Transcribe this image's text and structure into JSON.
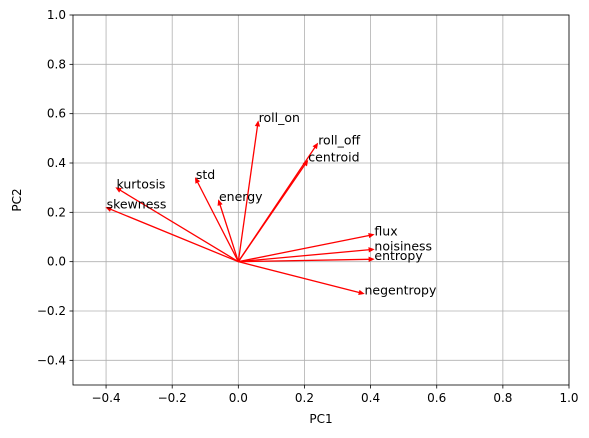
{
  "chart_data": {
    "type": "biplot",
    "title": "",
    "xlabel": "PC1",
    "ylabel": "PC2",
    "xlim": [
      -0.5,
      1.0
    ],
    "ylim": [
      -0.5,
      1.0
    ],
    "xticks": [
      -0.4,
      -0.2,
      0.0,
      0.2,
      0.4,
      0.6,
      0.8,
      1.0
    ],
    "yticks": [
      -0.4,
      -0.2,
      0.0,
      0.2,
      0.4,
      0.6,
      0.8,
      1.0
    ],
    "xtick_labels": [
      "−0.4",
      "−0.2",
      "0.0",
      "0.2",
      "0.4",
      "0.6",
      "0.8",
      "1.0"
    ],
    "ytick_labels": [
      "−0.4",
      "−0.2",
      "0.0",
      "0.2",
      "0.4",
      "0.6",
      "0.8",
      "1.0"
    ],
    "grid": true,
    "arrow_color": "#ff0000",
    "vectors": [
      {
        "name": "roll_on",
        "x": 0.06,
        "y": 0.57
      },
      {
        "name": "roll_off",
        "x": 0.24,
        "y": 0.48
      },
      {
        "name": "centroid",
        "x": 0.21,
        "y": 0.41
      },
      {
        "name": "std",
        "x": -0.13,
        "y": 0.34
      },
      {
        "name": "kurtosis",
        "x": -0.37,
        "y": 0.3
      },
      {
        "name": "skewness",
        "x": -0.4,
        "y": 0.22
      },
      {
        "name": "energy",
        "x": -0.06,
        "y": 0.25
      },
      {
        "name": "flux",
        "x": 0.41,
        "y": 0.11
      },
      {
        "name": "noisiness",
        "x": 0.41,
        "y": 0.05
      },
      {
        "name": "entropy",
        "x": 0.41,
        "y": 0.01
      },
      {
        "name": "negentropy",
        "x": 0.38,
        "y": -0.13
      }
    ]
  }
}
